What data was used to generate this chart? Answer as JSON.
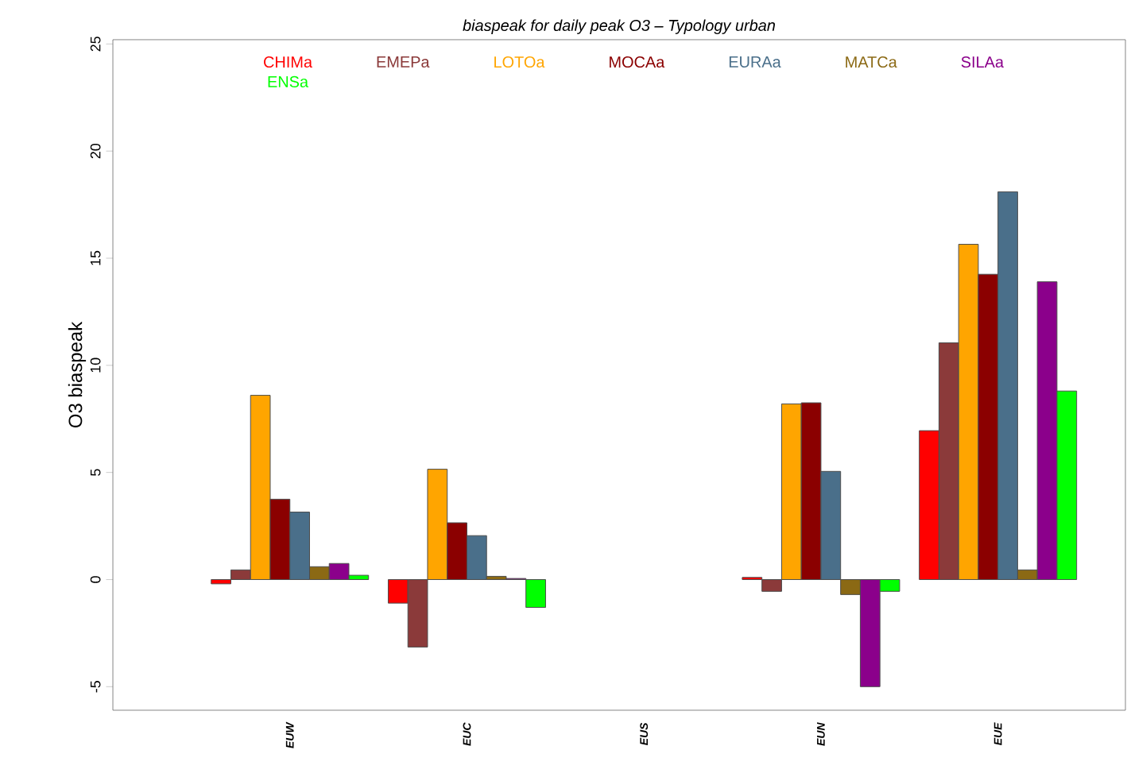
{
  "chart_data": {
    "type": "bar",
    "title": "biaspeak  for daily  peak O3 – Typology urban",
    "ylabel": "O3 biaspeak",
    "categories": [
      "EUW",
      "EUC",
      "EUS",
      "EUN",
      "EUE"
    ],
    "series": [
      {
        "name": "CHIMa",
        "color": "#ff0000",
        "values": [
          -0.2,
          -1.1,
          null,
          0.1,
          6.95
        ]
      },
      {
        "name": "EMEPa",
        "color": "#8b3a3a",
        "values": [
          0.45,
          -3.15,
          null,
          -0.55,
          11.05
        ]
      },
      {
        "name": "LOTOa",
        "color": "#ffa500",
        "values": [
          8.6,
          5.15,
          null,
          8.2,
          15.65
        ]
      },
      {
        "name": "MOCAa",
        "color": "#8b0000",
        "values": [
          3.75,
          2.65,
          null,
          8.25,
          14.25
        ]
      },
      {
        "name": "EURAa",
        "color": "#4a6f8a",
        "values": [
          3.15,
          2.05,
          null,
          5.05,
          18.1
        ]
      },
      {
        "name": "MATCa",
        "color": "#8b6914",
        "values": [
          0.6,
          0.15,
          null,
          -0.7,
          0.45
        ]
      },
      {
        "name": "SILAa",
        "color": "#8b008b",
        "values": [
          0.75,
          0.05,
          null,
          -5.0,
          13.9
        ]
      },
      {
        "name": "ENSa",
        "color": "#00ff00",
        "values": [
          0.2,
          -1.3,
          null,
          -0.55,
          8.8
        ]
      }
    ],
    "ylim": [
      -6.1,
      25.2
    ],
    "yticks": [
      -5,
      0,
      5,
      10,
      15,
      20,
      25
    ],
    "legend": "top",
    "grid": false
  }
}
